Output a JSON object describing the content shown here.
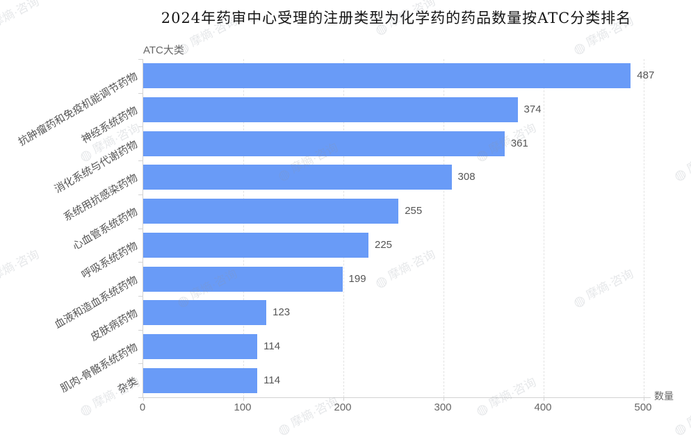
{
  "watermark": {
    "icon": "◍",
    "text": "摩熵·咨询"
  },
  "chart_data": {
    "type": "bar",
    "orientation": "horizontal",
    "title": "2024年药审中心受理的注册类型为化学药的药品数量按ATC分类排名",
    "y_axis_title": "ATC大类",
    "x_axis_title": "数量",
    "categories": [
      "抗肿瘤药和免疫机能调节药物",
      "神经系统药物",
      "消化系统与代谢药物",
      "系统用抗感染药物",
      "心血管系统药物",
      "呼吸系统药物",
      "血液和造血系统药物",
      "皮肤病药物",
      "肌肉-骨骼系统药物",
      "杂类"
    ],
    "values": [
      487,
      374,
      361,
      308,
      255,
      225,
      199,
      123,
      114,
      114
    ],
    "x_ticks": [
      0,
      100,
      200,
      300,
      400,
      500
    ],
    "xlim": [
      0,
      500
    ],
    "bar_color": "#699bf7",
    "value_label_color": "#555555",
    "category_label_color": "#555555",
    "tick_label_color": "#666666",
    "axis_color": "#d2d2d2",
    "grid": "vertical-dashed",
    "legend": "none",
    "value_labels": true
  }
}
